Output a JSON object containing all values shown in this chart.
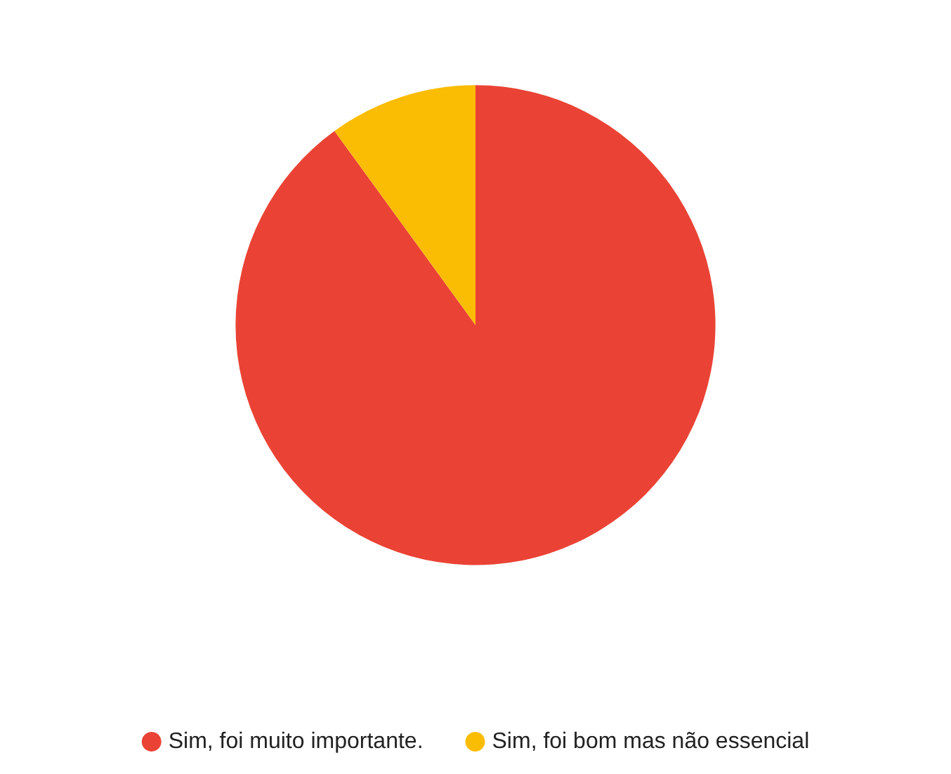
{
  "chart_data": {
    "type": "pie",
    "categories": [
      "Sim, foi muito importante.",
      "Sim, foi bom mas não essencial"
    ],
    "values": [
      90,
      10
    ],
    "colors": [
      "#ea4335",
      "#fbbc04"
    ],
    "legend": "bottom"
  }
}
